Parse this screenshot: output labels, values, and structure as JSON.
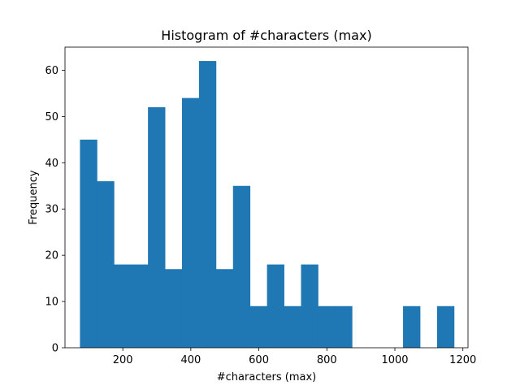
{
  "chart_data": {
    "type": "bar",
    "subtype": "histogram",
    "title": "Histogram of #characters (max)",
    "xlabel": "#characters (max)",
    "ylabel": "Frequency",
    "bin_edges": [
      74,
      124,
      174,
      224,
      274,
      324,
      374,
      424,
      474,
      524,
      574,
      624,
      674,
      724,
      774,
      824,
      874,
      924,
      974,
      1024,
      1074,
      1124,
      1174
    ],
    "values": [
      45,
      36,
      18,
      18,
      52,
      17,
      54,
      62,
      17,
      35,
      9,
      18,
      9,
      18,
      9,
      9,
      0,
      0,
      0,
      9,
      0,
      9
    ],
    "xlim": [
      30,
      1215
    ],
    "ylim": [
      0,
      65
    ],
    "x_ticks": [
      200,
      400,
      600,
      800,
      1000,
      1200
    ],
    "y_ticks": [
      0,
      10,
      20,
      30,
      40,
      50,
      60
    ],
    "grid": false,
    "legend": "none",
    "bar_color": "#1f77b4"
  }
}
